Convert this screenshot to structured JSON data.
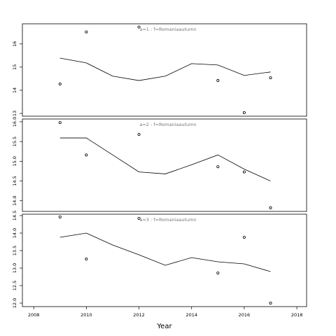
{
  "chart_data": [
    {
      "type": "line",
      "title": "a=1 : f=Romaniaautumn",
      "series": [
        {
          "x": [
            2009,
            2010,
            2012,
            2015,
            2016,
            2017
          ],
          "values": [
            14.27,
            16.52,
            16.73,
            14.42,
            13.03,
            14.54
          ],
          "marker": "circle",
          "color": "#000000"
        },
        {
          "x": [
            2009,
            2010,
            2011,
            2012,
            2013,
            2014,
            2015,
            2016,
            2017
          ],
          "values": [
            15.39,
            15.18,
            14.61,
            14.42,
            14.61,
            15.15,
            15.09,
            14.64,
            14.79
          ],
          "marker": "none",
          "color": "#000000"
        }
      ],
      "xlim": [
        2007.57,
        2018.37
      ],
      "ylim": [
        12.88,
        16.87
      ],
      "yticks": [
        13,
        14,
        15,
        16
      ]
    },
    {
      "type": "line",
      "title": "a=2 : f=Romaniaautumn",
      "series": [
        {
          "x": [
            2009,
            2010,
            2012,
            2015,
            2016,
            2017
          ],
          "values": [
            15.98,
            15.16,
            15.68,
            14.86,
            14.73,
            13.82
          ],
          "marker": "circle",
          "color": "#000000"
        },
        {
          "x": [
            2009,
            2010,
            2011,
            2012,
            2013,
            2014,
            2015,
            2016,
            2017
          ],
          "values": [
            15.59,
            15.59,
            15.16,
            14.73,
            14.68,
            14.91,
            15.16,
            14.8,
            14.5
          ],
          "marker": "none",
          "color": "#000000"
        }
      ],
      "xlim": [
        2007.57,
        2018.37
      ],
      "ylim": [
        13.73,
        16.07
      ],
      "yticks": [
        {
          "value": 14,
          "label": "14.0"
        },
        14.5,
        {
          "value": 15,
          "label": "15.0"
        },
        15.5,
        {
          "value": 16,
          "label": "16.0"
        }
      ]
    },
    {
      "type": "line",
      "title": "a=3 : f=Romaniaautumn",
      "series": [
        {
          "x": [
            2009,
            2010,
            2012,
            2015,
            2016,
            2017
          ],
          "values": [
            14.46,
            13.26,
            14.42,
            12.86,
            13.88,
            12.0
          ],
          "marker": "circle",
          "color": "#000000"
        },
        {
          "x": [
            2009,
            2010,
            2011,
            2012,
            2013,
            2014,
            2015,
            2016,
            2017
          ],
          "values": [
            13.88,
            14.0,
            13.66,
            13.38,
            13.08,
            13.3,
            13.18,
            13.12,
            12.9
          ],
          "marker": "none",
          "color": "#000000"
        }
      ],
      "xlim": [
        2007.57,
        2018.37
      ],
      "ylim": [
        11.9,
        14.54
      ],
      "yticks": [
        {
          "value": 12,
          "label": "12.0"
        },
        12.5,
        {
          "value": 13,
          "label": "13.0"
        },
        13.5,
        {
          "value": 14,
          "label": "14.0"
        },
        14.5
      ],
      "xticks": [
        2008,
        2010,
        2012,
        2014,
        2016,
        2018
      ],
      "xlabel": "Year"
    }
  ]
}
